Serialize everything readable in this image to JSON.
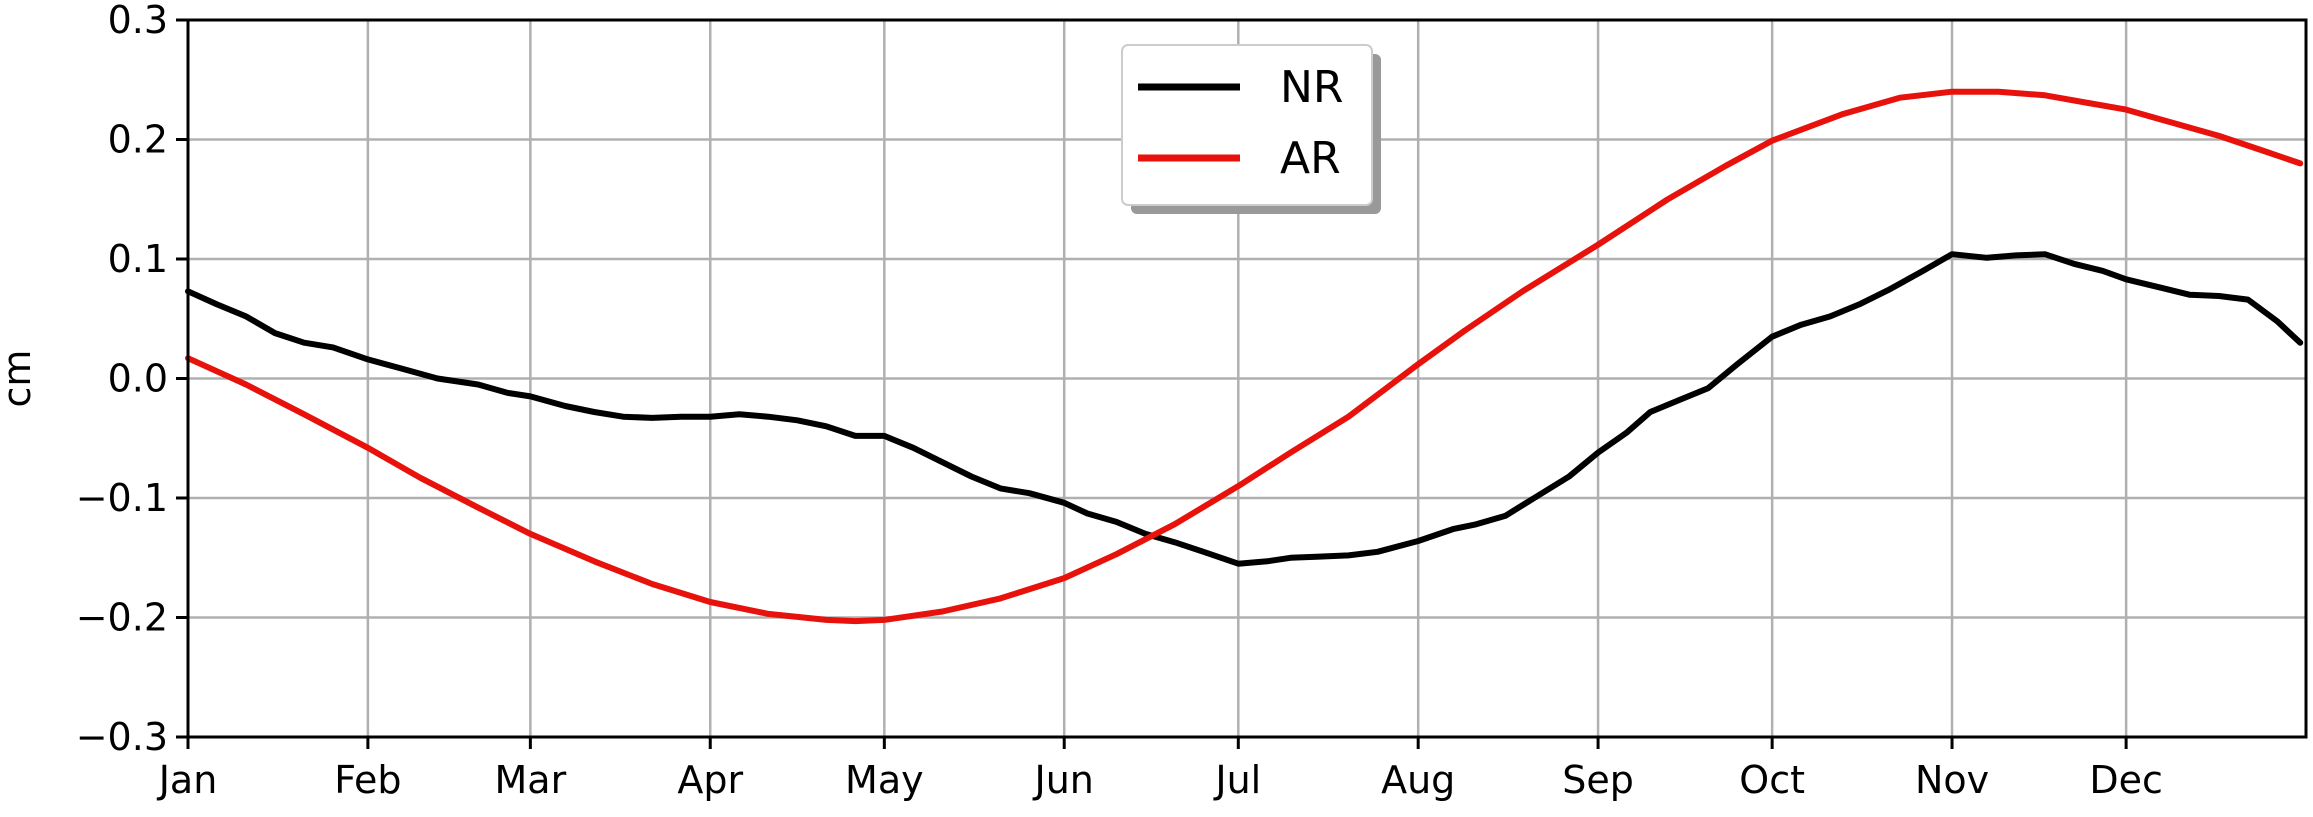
{
  "chart_data": {
    "type": "line",
    "title": "",
    "xlabel": "",
    "ylabel": "cm",
    "xlim": [
      0,
      365
    ],
    "ylim": [
      -0.3,
      0.3
    ],
    "grid": true,
    "legend_position": "top-center",
    "x_ticks": [
      {
        "label": "Jan",
        "value": 0
      },
      {
        "label": "Feb",
        "value": 31
      },
      {
        "label": "Mar",
        "value": 59
      },
      {
        "label": "Apr",
        "value": 90
      },
      {
        "label": "May",
        "value": 120
      },
      {
        "label": "Jun",
        "value": 151
      },
      {
        "label": "Jul",
        "value": 181
      },
      {
        "label": "Aug",
        "value": 212
      },
      {
        "label": "Sep",
        "value": 243
      },
      {
        "label": "Oct",
        "value": 273
      },
      {
        "label": "Nov",
        "value": 304
      },
      {
        "label": "Dec",
        "value": 334
      }
    ],
    "y_ticks": [
      {
        "label": "0.3",
        "value": 0.3
      },
      {
        "label": "0.2",
        "value": 0.2
      },
      {
        "label": "0.1",
        "value": 0.1
      },
      {
        "label": "0.0",
        "value": 0.0
      },
      {
        "label": "−0.1",
        "value": -0.1
      },
      {
        "label": "−0.2",
        "value": -0.2
      },
      {
        "label": "−0.3",
        "value": -0.3
      }
    ],
    "series": [
      {
        "name": "NR",
        "color": "#000000",
        "points": [
          [
            0,
            0.073
          ],
          [
            5,
            0.062
          ],
          [
            10,
            0.052
          ],
          [
            15,
            0.038
          ],
          [
            20,
            0.03
          ],
          [
            25,
            0.026
          ],
          [
            31,
            0.016
          ],
          [
            37,
            0.008
          ],
          [
            43,
            0.0
          ],
          [
            50,
            -0.005
          ],
          [
            55,
            -0.012
          ],
          [
            59,
            -0.015
          ],
          [
            65,
            -0.023
          ],
          [
            70,
            -0.028
          ],
          [
            75,
            -0.032
          ],
          [
            80,
            -0.033
          ],
          [
            85,
            -0.032
          ],
          [
            90,
            -0.032
          ],
          [
            95,
            -0.03
          ],
          [
            100,
            -0.032
          ],
          [
            105,
            -0.035
          ],
          [
            110,
            -0.04
          ],
          [
            115,
            -0.048
          ],
          [
            120,
            -0.048
          ],
          [
            125,
            -0.058
          ],
          [
            130,
            -0.07
          ],
          [
            135,
            -0.082
          ],
          [
            140,
            -0.092
          ],
          [
            145,
            -0.096
          ],
          [
            151,
            -0.104
          ],
          [
            155,
            -0.113
          ],
          [
            160,
            -0.12
          ],
          [
            165,
            -0.13
          ],
          [
            170,
            -0.137
          ],
          [
            175,
            -0.145
          ],
          [
            181,
            -0.155
          ],
          [
            186,
            -0.153
          ],
          [
            190,
            -0.15
          ],
          [
            195,
            -0.149
          ],
          [
            200,
            -0.148
          ],
          [
            205,
            -0.145
          ],
          [
            212,
            -0.136
          ],
          [
            218,
            -0.126
          ],
          [
            222,
            -0.122
          ],
          [
            227,
            -0.115
          ],
          [
            232,
            -0.1
          ],
          [
            238,
            -0.082
          ],
          [
            243,
            -0.062
          ],
          [
            248,
            -0.045
          ],
          [
            252,
            -0.028
          ],
          [
            257,
            -0.018
          ],
          [
            262,
            -0.008
          ],
          [
            267,
            0.012
          ],
          [
            273,
            0.035
          ],
          [
            278,
            0.045
          ],
          [
            283,
            0.052
          ],
          [
            288,
            0.062
          ],
          [
            293,
            0.074
          ],
          [
            299,
            0.09
          ],
          [
            304,
            0.104
          ],
          [
            310,
            0.101
          ],
          [
            315,
            0.103
          ],
          [
            320,
            0.104
          ],
          [
            325,
            0.096
          ],
          [
            330,
            0.09
          ],
          [
            334,
            0.083
          ],
          [
            340,
            0.076
          ],
          [
            345,
            0.07
          ],
          [
            350,
            0.069
          ],
          [
            355,
            0.066
          ],
          [
            360,
            0.048
          ],
          [
            364,
            0.03
          ]
        ]
      },
      {
        "name": "AR",
        "color": "#e8120c",
        "points": [
          [
            0,
            0.017
          ],
          [
            10,
            -0.005
          ],
          [
            20,
            -0.03
          ],
          [
            31,
            -0.058
          ],
          [
            40,
            -0.083
          ],
          [
            50,
            -0.108
          ],
          [
            59,
            -0.13
          ],
          [
            70,
            -0.153
          ],
          [
            80,
            -0.172
          ],
          [
            90,
            -0.187
          ],
          [
            100,
            -0.197
          ],
          [
            110,
            -0.202
          ],
          [
            115,
            -0.203
          ],
          [
            120,
            -0.202
          ],
          [
            130,
            -0.195
          ],
          [
            140,
            -0.184
          ],
          [
            151,
            -0.167
          ],
          [
            160,
            -0.147
          ],
          [
            170,
            -0.122
          ],
          [
            181,
            -0.09
          ],
          [
            190,
            -0.062
          ],
          [
            200,
            -0.032
          ],
          [
            212,
            0.012
          ],
          [
            220,
            0.04
          ],
          [
            230,
            0.073
          ],
          [
            243,
            0.112
          ],
          [
            255,
            0.15
          ],
          [
            265,
            0.178
          ],
          [
            273,
            0.199
          ],
          [
            285,
            0.221
          ],
          [
            295,
            0.235
          ],
          [
            304,
            0.24
          ],
          [
            312,
            0.24
          ],
          [
            320,
            0.237
          ],
          [
            327,
            0.231
          ],
          [
            334,
            0.225
          ],
          [
            342,
            0.214
          ],
          [
            350,
            0.203
          ],
          [
            358,
            0.19
          ],
          [
            364,
            0.18
          ]
        ]
      }
    ]
  }
}
